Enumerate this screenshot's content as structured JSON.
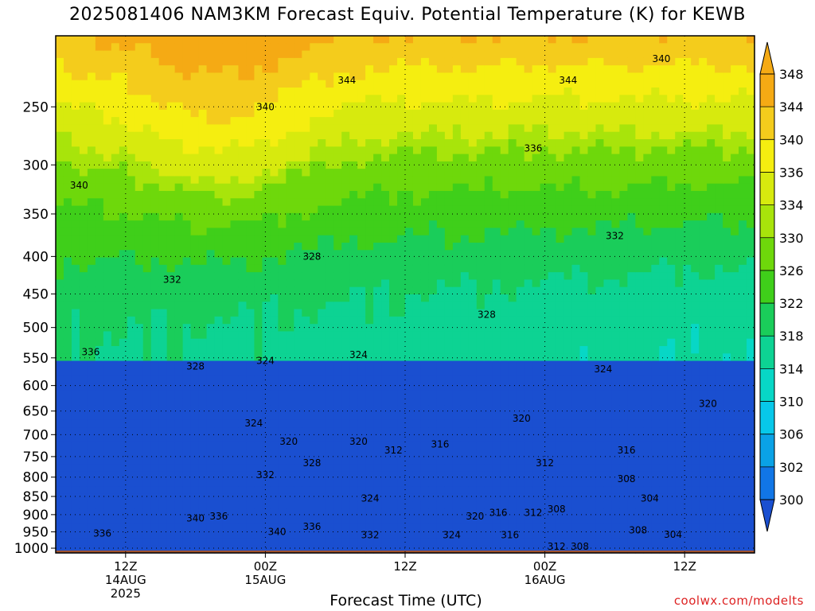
{
  "chart_data": {
    "type": "heatmap",
    "title": "2025081406 NAM3KM Forecast Equiv. Potential Temperature (K) for KEWB",
    "xlabel": "Forecast Time (UTC)",
    "ylabel": "",
    "units": "K",
    "x_ticks": [
      {
        "hour": 6,
        "label": [
          "12Z",
          "14AUG",
          "2025"
        ]
      },
      {
        "hour": 18,
        "label": [
          "00Z",
          "15AUG"
        ]
      },
      {
        "hour": 30,
        "label": [
          "12Z"
        ]
      },
      {
        "hour": 42,
        "label": [
          "00Z",
          "16AUG"
        ]
      },
      {
        "hour": 54,
        "label": [
          "12Z"
        ]
      }
    ],
    "xlim_hours": [
      0,
      60
    ],
    "y_ticks": [
      250,
      300,
      350,
      400,
      450,
      500,
      550,
      600,
      650,
      700,
      750,
      800,
      850,
      900,
      950,
      1000
    ],
    "ylim_hPa": [
      1015,
      200
    ],
    "y_scale": "log-pressure",
    "grid": "dotted",
    "colorbar": {
      "labels": [
        348,
        344,
        340,
        336,
        334,
        330,
        326,
        322,
        318,
        314,
        310,
        306,
        302,
        300
      ],
      "colors": [
        "#f5aa14",
        "#f4cc1c",
        "#f5ee10",
        "#d7ea0e",
        "#a8e40b",
        "#6ed80b",
        "#3fcf1a",
        "#1acd5a",
        "#0dd393",
        "#07d7c6",
        "#07c8ea",
        "#0aa2e6",
        "#1176e6",
        "#1a4fd0"
      ]
    },
    "contour_labels": [
      {
        "v": 340,
        "x": 52,
        "p": 215
      },
      {
        "v": 344,
        "x": 25,
        "p": 230
      },
      {
        "v": 344,
        "x": 44,
        "p": 230
      },
      {
        "v": 340,
        "x": 18,
        "p": 250
      },
      {
        "v": 336,
        "x": 41,
        "p": 285
      },
      {
        "v": 340,
        "x": 2,
        "p": 320
      },
      {
        "v": 332,
        "x": 48,
        "p": 375
      },
      {
        "v": 328,
        "x": 22,
        "p": 400
      },
      {
        "v": 332,
        "x": 10,
        "p": 430
      },
      {
        "v": 328,
        "x": 37,
        "p": 480
      },
      {
        "v": 336,
        "x": 3,
        "p": 540
      },
      {
        "v": 328,
        "x": 12,
        "p": 565
      },
      {
        "v": 324,
        "x": 18,
        "p": 555
      },
      {
        "v": 324,
        "x": 26,
        "p": 545
      },
      {
        "v": 324,
        "x": 47,
        "p": 570
      },
      {
        "v": 320,
        "x": 56,
        "p": 635
      },
      {
        "v": 320,
        "x": 40,
        "p": 665
      },
      {
        "v": 324,
        "x": 17,
        "p": 675
      },
      {
        "v": 320,
        "x": 20,
        "p": 715
      },
      {
        "v": 320,
        "x": 26,
        "p": 715
      },
      {
        "v": 312,
        "x": 29,
        "p": 735
      },
      {
        "v": 316,
        "x": 33,
        "p": 722
      },
      {
        "v": 316,
        "x": 49,
        "p": 735
      },
      {
        "v": 328,
        "x": 22,
        "p": 765
      },
      {
        "v": 312,
        "x": 42,
        "p": 765
      },
      {
        "v": 332,
        "x": 18,
        "p": 795
      },
      {
        "v": 308,
        "x": 49,
        "p": 805
      },
      {
        "v": 324,
        "x": 27,
        "p": 855
      },
      {
        "v": 304,
        "x": 51,
        "p": 855
      },
      {
        "v": 308,
        "x": 43,
        "p": 885
      },
      {
        "v": 320,
        "x": 36,
        "p": 905
      },
      {
        "v": 316,
        "x": 38,
        "p": 895
      },
      {
        "v": 312,
        "x": 41,
        "p": 895
      },
      {
        "v": 340,
        "x": 12,
        "p": 910
      },
      {
        "v": 336,
        "x": 14,
        "p": 905
      },
      {
        "v": 336,
        "x": 22,
        "p": 935
      },
      {
        "v": 340,
        "x": 19,
        "p": 950
      },
      {
        "v": 308,
        "x": 50,
        "p": 945
      },
      {
        "v": 304,
        "x": 53,
        "p": 958
      },
      {
        "v": 336,
        "x": 4,
        "p": 955
      },
      {
        "v": 332,
        "x": 27,
        "p": 960
      },
      {
        "v": 324,
        "x": 34,
        "p": 960
      },
      {
        "v": 316,
        "x": 39,
        "p": 960
      },
      {
        "v": 312,
        "x": 43,
        "p": 995
      },
      {
        "v": 308,
        "x": 45,
        "p": 995
      }
    ]
  },
  "credit": "coolwx.com/modelts"
}
